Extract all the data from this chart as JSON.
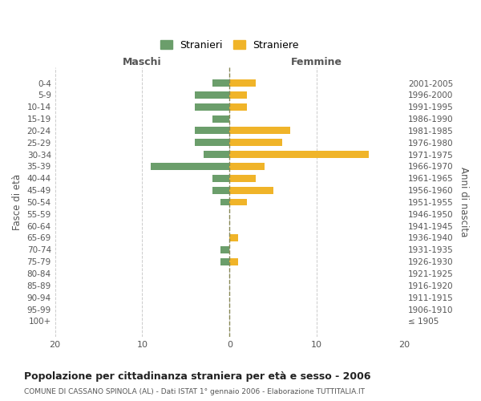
{
  "age_groups": [
    "100+",
    "95-99",
    "90-94",
    "85-89",
    "80-84",
    "75-79",
    "70-74",
    "65-69",
    "60-64",
    "55-59",
    "50-54",
    "45-49",
    "40-44",
    "35-39",
    "30-34",
    "25-29",
    "20-24",
    "15-19",
    "10-14",
    "5-9",
    "0-4"
  ],
  "birth_years": [
    "≤ 1905",
    "1906-1910",
    "1911-1915",
    "1916-1920",
    "1921-1925",
    "1926-1930",
    "1931-1935",
    "1936-1940",
    "1941-1945",
    "1946-1950",
    "1951-1955",
    "1956-1960",
    "1961-1965",
    "1966-1970",
    "1971-1975",
    "1976-1980",
    "1981-1985",
    "1986-1990",
    "1991-1995",
    "1996-2000",
    "2001-2005"
  ],
  "maschi": [
    0,
    0,
    0,
    0,
    0,
    1,
    1,
    0,
    0,
    0,
    1,
    2,
    2,
    9,
    3,
    4,
    4,
    2,
    4,
    4,
    2
  ],
  "femmine": [
    0,
    0,
    0,
    0,
    0,
    1,
    0,
    1,
    0,
    0,
    2,
    5,
    3,
    4,
    16,
    6,
    7,
    0,
    2,
    2,
    3
  ],
  "color_maschi": "#6b9e6b",
  "color_femmine": "#f0b429",
  "title": "Popolazione per cittadinanza straniera per età e sesso - 2006",
  "subtitle": "COMUNE DI CASSANO SPINOLA (AL) - Dati ISTAT 1° gennaio 2006 - Elaborazione TUTTITALIA.IT",
  "ylabel_left": "Fasce di età",
  "ylabel_right": "Anni di nascita",
  "xlabel_maschi": "Maschi",
  "xlabel_femmine": "Femmine",
  "legend_maschi": "Stranieri",
  "legend_femmine": "Straniere",
  "xlim": 20,
  "background_color": "#ffffff",
  "grid_color": "#cccccc"
}
